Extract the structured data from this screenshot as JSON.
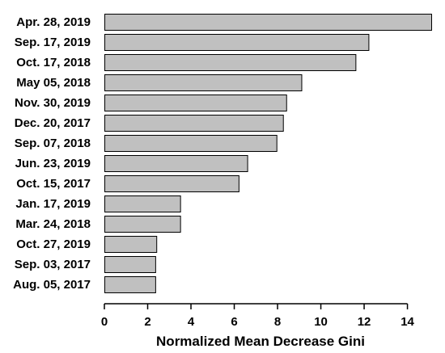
{
  "chart_data": {
    "type": "bar",
    "orientation": "horizontal",
    "categories": [
      "Apr. 28, 2019",
      "Sep. 17, 2019",
      "Oct. 17, 2018",
      "May 05, 2018",
      "Nov. 30, 2019",
      "Dec. 20, 2017",
      "Sep. 07, 2018",
      "Jun. 23, 2019",
      "Oct. 15, 2017",
      "Jan. 17, 2019",
      "Mar. 24, 2018",
      "Oct. 27, 2019",
      "Sep. 03, 2017",
      "Aug. 05, 2017"
    ],
    "values": [
      15.1,
      12.2,
      11.6,
      9.1,
      8.4,
      8.25,
      7.95,
      6.6,
      6.2,
      3.5,
      3.5,
      2.4,
      2.35,
      2.35
    ],
    "title": "",
    "xlabel": "Normalized Mean Decrease Gini",
    "ylabel": "",
    "xlim": [
      0,
      15.1
    ],
    "xticks": [
      0,
      2,
      4,
      6,
      8,
      10,
      12,
      14
    ],
    "grid": false,
    "legend": "none",
    "bar_color": "#c0c0c0",
    "bar_edge_color": "#000000"
  }
}
